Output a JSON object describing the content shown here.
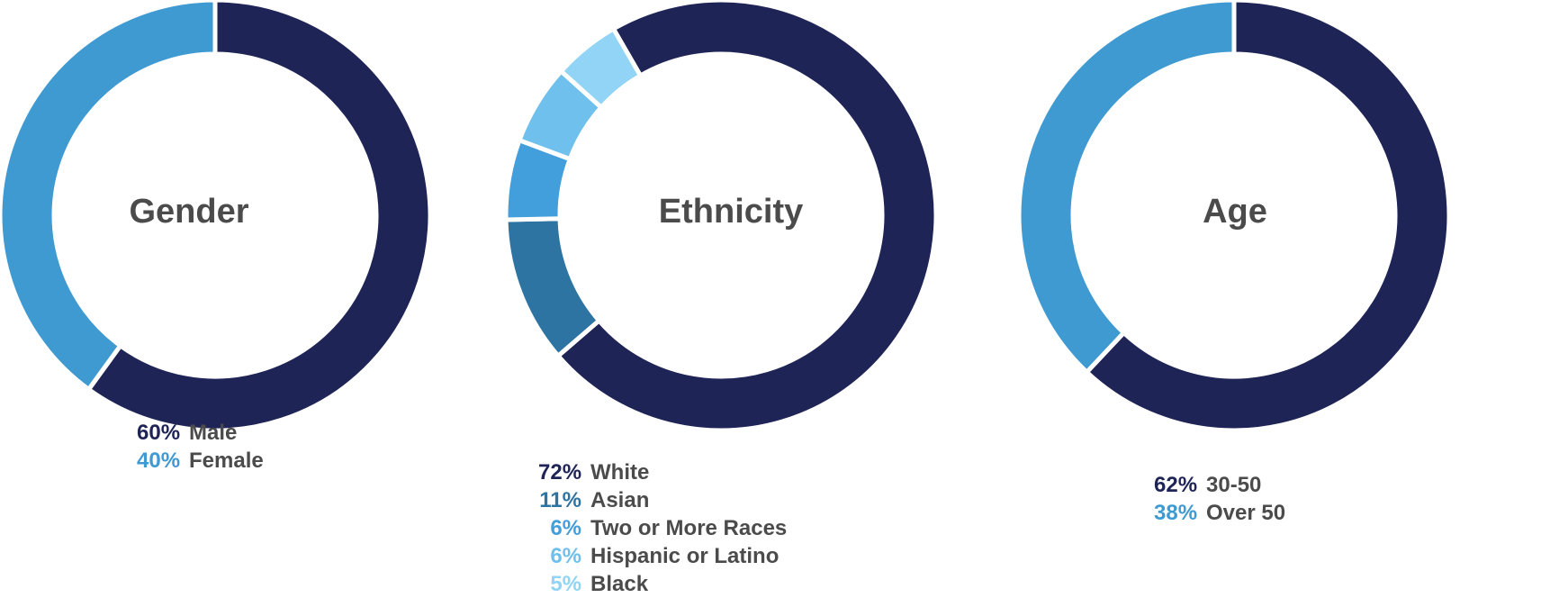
{
  "chart_data": [
    {
      "type": "pie",
      "title": "Gender",
      "values": [
        60,
        40
      ],
      "labels": [
        "60%",
        "40%"
      ],
      "categories": [
        "Male",
        "Female"
      ],
      "colors": [
        "#1f2456",
        "#409ad2"
      ]
    },
    {
      "type": "pie",
      "title": "Ethnicity",
      "values": [
        72,
        11,
        6,
        6,
        5
      ],
      "labels": [
        "72%",
        "11%",
        "6%",
        "6%",
        "5%"
      ],
      "categories": [
        "White",
        "Asian",
        "Two or More Races",
        "Hispanic or Latino",
        "Black"
      ],
      "colors": [
        "#1f2456",
        "#2e74a3",
        "#439fdc",
        "#6fc0ec",
        "#91d4f5"
      ]
    },
    {
      "type": "pie",
      "title": "Age",
      "values": [
        62,
        38
      ],
      "labels": [
        "62%",
        "38%"
      ],
      "categories": [
        "30-50",
        "Over 50"
      ],
      "colors": [
        "#1f2456",
        "#409ad2"
      ]
    }
  ]
}
